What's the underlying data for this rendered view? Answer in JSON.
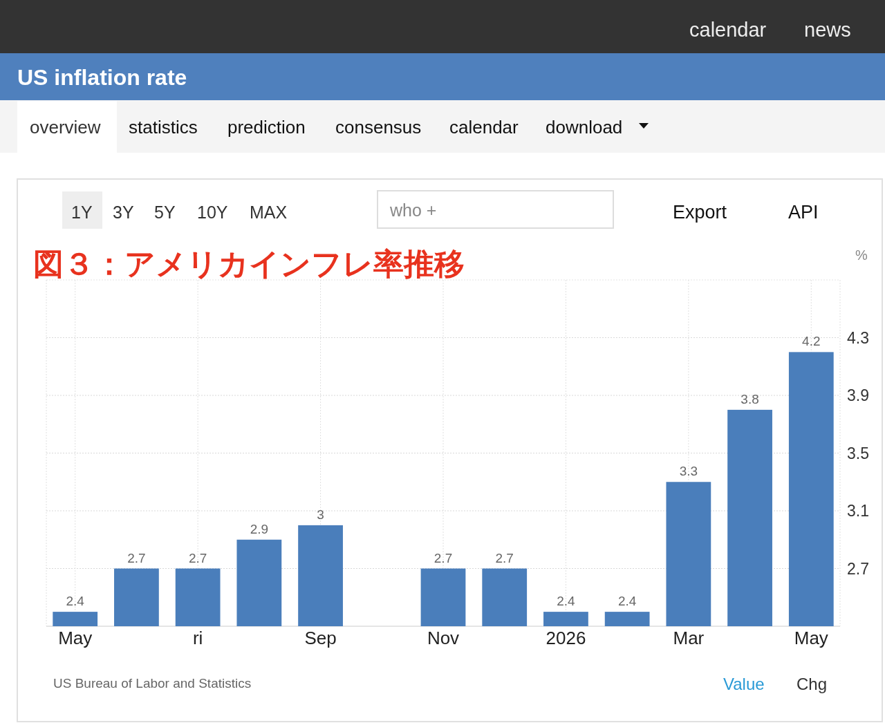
{
  "chart_data": {
    "type": "bar",
    "title": "US inflation rate",
    "subtitle": "図３：アメリカインフレ率推移",
    "ylabel": "%",
    "categories": [
      "May",
      null,
      "ri",
      null,
      "Sep",
      null,
      "Nov",
      null,
      "2026",
      null,
      "Mar",
      null,
      "May"
    ],
    "values": [
      2.4,
      2.7,
      2.7,
      2.9,
      3,
      null,
      2.7,
      2.7,
      2.4,
      2.4,
      3.3,
      3.8,
      4.2
    ],
    "color": "#4a7ebb",
    "ylim": [
      2.3,
      4.7
    ],
    "yticks": [
      2.7,
      3.1,
      3.5,
      3.9,
      4.3
    ],
    "grid": true,
    "data_labels": true,
    "annotations": [
      "US Bureau of Labor and Statistics",
      "calendar",
      "news",
      "overview",
      "statistics",
      "prediction",
      "consensus",
      "calendar",
      "download",
      "1Y",
      "3Y",
      "5Y",
      "10Y",
      "MAX",
      "who +",
      "Export",
      "API",
      "Value",
      "Chg"
    ]
  }
}
